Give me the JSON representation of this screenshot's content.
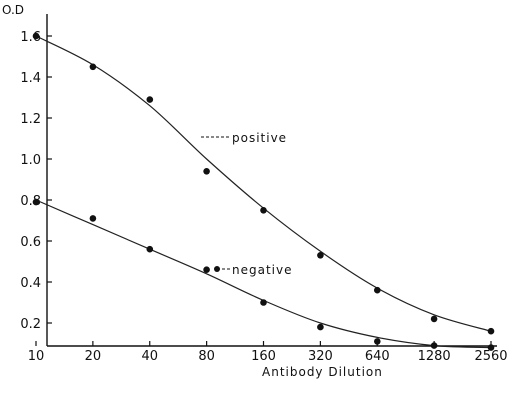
{
  "chart_data": {
    "type": "scatter",
    "title": "",
    "xlabel": "Antibody Dilution",
    "ylabel": "O.D",
    "x_scale": "log2",
    "x_ticks": [
      10,
      20,
      40,
      80,
      160,
      320,
      640,
      1280,
      2560
    ],
    "x_tick_labels": [
      "10",
      "20",
      "40",
      "80",
      "160",
      "320",
      "640",
      "1280",
      "2560"
    ],
    "y_ticks": [
      0.2,
      0.4,
      0.6,
      0.8,
      1.0,
      1.2,
      1.4,
      1.6
    ],
    "y_tick_labels": [
      "0.2",
      "0.4",
      "0.6",
      "0.8",
      "1.0",
      "1.2",
      "1.4",
      "1.6"
    ],
    "ylim": [
      0.05,
      1.75
    ],
    "grid": false,
    "series": [
      {
        "name": "positive",
        "x": [
          10,
          20,
          40,
          80,
          160,
          320,
          640,
          1280,
          2560
        ],
        "values": [
          1.6,
          1.45,
          1.29,
          0.94,
          0.75,
          0.53,
          0.36,
          0.22,
          0.16
        ],
        "fit": [
          1.6,
          1.46,
          1.26,
          1.0,
          0.76,
          0.55,
          0.37,
          0.24,
          0.16
        ]
      },
      {
        "name": "negative",
        "x": [
          10,
          20,
          40,
          80,
          160,
          320,
          640,
          1280,
          2560
        ],
        "values": [
          0.79,
          0.71,
          0.56,
          0.46,
          0.3,
          0.18,
          0.11,
          0.09,
          0.08
        ],
        "fit": [
          0.8,
          0.68,
          0.56,
          0.44,
          0.31,
          0.2,
          0.13,
          0.09,
          0.08
        ]
      }
    ],
    "annotations": [
      "positive",
      "negative"
    ]
  }
}
